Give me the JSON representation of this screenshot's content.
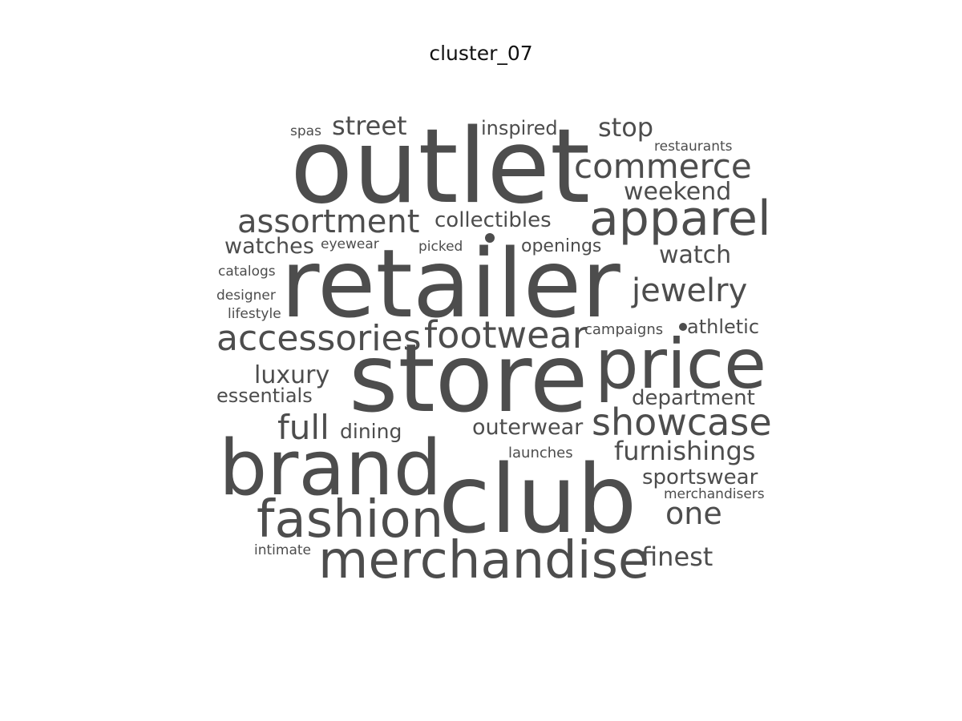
{
  "chart_data": {
    "type": "wordcloud",
    "title": "cluster_07",
    "color": "#4d4d4d",
    "words": [
      {
        "text": "retailer",
        "weight": 100
      },
      {
        "text": "store",
        "weight": 97
      },
      {
        "text": "club",
        "weight": 95
      },
      {
        "text": "outlet",
        "weight": 94
      },
      {
        "text": "brand",
        "weight": 76
      },
      {
        "text": "price",
        "weight": 73
      },
      {
        "text": "merchandise",
        "weight": 59
      },
      {
        "text": "fashion",
        "weight": 59
      },
      {
        "text": "apparel",
        "weight": 55
      },
      {
        "text": "footwear",
        "weight": 47
      },
      {
        "text": "accessories",
        "weight": 44
      },
      {
        "text": "showcase",
        "weight": 44
      },
      {
        "text": "commerce",
        "weight": 40
      },
      {
        "text": "assortment",
        "weight": 40
      },
      {
        "text": "jewelry",
        "weight": 40
      },
      {
        "text": "full",
        "weight": 42
      },
      {
        "text": "one",
        "weight": 38
      },
      {
        "text": "finest",
        "weight": 33
      },
      {
        "text": "furnishings",
        "weight": 33
      },
      {
        "text": "street",
        "weight": 33
      },
      {
        "text": "stop",
        "weight": 33
      },
      {
        "text": "weekend",
        "weight": 31
      },
      {
        "text": "watch",
        "weight": 31
      },
      {
        "text": "luxury",
        "weight": 30
      },
      {
        "text": "department",
        "weight": 28
      },
      {
        "text": "outerwear",
        "weight": 28
      },
      {
        "text": "sportswear",
        "weight": 28
      },
      {
        "text": "watches",
        "weight": 28
      },
      {
        "text": "collectibles",
        "weight": 26
      },
      {
        "text": "inspired",
        "weight": 25
      },
      {
        "text": "essentials",
        "weight": 25
      },
      {
        "text": "dining",
        "weight": 25
      },
      {
        "text": "athletic",
        "weight": 25
      },
      {
        "text": "openings",
        "weight": 22
      },
      {
        "text": "launches",
        "weight": 20
      },
      {
        "text": "campaigns",
        "weight": 19
      },
      {
        "text": "merchandisers",
        "weight": 18
      },
      {
        "text": "restaurants",
        "weight": 18
      },
      {
        "text": "catalogs",
        "weight": 18
      },
      {
        "text": "designer",
        "weight": 18
      },
      {
        "text": "lifestyle",
        "weight": 18
      },
      {
        "text": "intimate",
        "weight": 18
      },
      {
        "text": "eyewear",
        "weight": 18
      },
      {
        "text": "picked",
        "weight": 18
      },
      {
        "text": "spas",
        "weight": 18
      }
    ]
  }
}
